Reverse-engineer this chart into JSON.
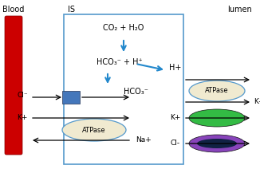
{
  "blood_color": "#cc0000",
  "cell_box_color": "#5599cc",
  "arrow_color_blue": "#2288cc",
  "channel_blue_fill": "#4477bb",
  "channel_green_fill": "#33bb44",
  "channel_purple_fill": "#8844bb",
  "channel_dark_fill": "#112244",
  "atpase_fill": "#f0ead0",
  "labels": {
    "blood": "Blood",
    "IS": "IS",
    "lumen": "lumen",
    "CO2H2O": "CO₂ + H₂O",
    "HCO3H": "HCO₃⁻ + H⁺",
    "HCO3": "HCO₃⁻",
    "Hplus": "H+",
    "Kplus_r1": "K+",
    "Kplus_r2": "K+",
    "Clminus_r": "Cl-",
    "Clminus_l": "Cl⁻",
    "Kplus_l": "K+",
    "Naplus": "Na+"
  }
}
